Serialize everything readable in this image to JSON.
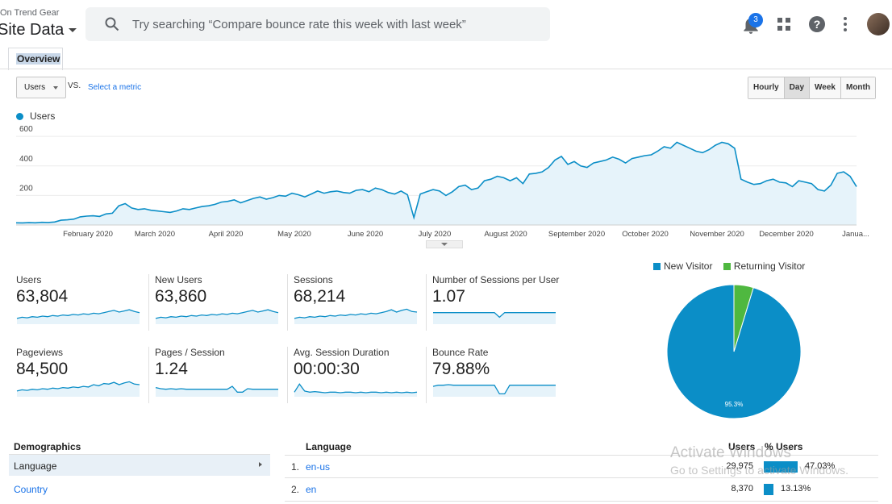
{
  "header": {
    "account": "On Trend Gear",
    "property": "Site Data",
    "search_placeholder": "Try searching “Compare bounce rate this week with last week”",
    "notification_count": "3",
    "icons": [
      "search-icon",
      "bell-icon",
      "apps-icon",
      "help-icon",
      "more-vert-icon",
      "avatar"
    ]
  },
  "tabs": {
    "overview": "Overview"
  },
  "controls": {
    "metric": "Users",
    "vs": "VS.",
    "select_metric": "Select a metric",
    "granularity": [
      "Hourly",
      "Day",
      "Week",
      "Month"
    ],
    "active_granularity": "Day"
  },
  "chart_data": [
    {
      "type": "area",
      "series": [
        {
          "name": "Users",
          "color": "#0b8ec7",
          "values": [
            15,
            14,
            16,
            15,
            18,
            17,
            20,
            32,
            35,
            40,
            55,
            60,
            62,
            58,
            75,
            80,
            130,
            145,
            115,
            105,
            110,
            100,
            95,
            90,
            85,
            95,
            110,
            105,
            115,
            125,
            130,
            140,
            155,
            160,
            170,
            150,
            165,
            180,
            190,
            175,
            185,
            200,
            195,
            215,
            205,
            190,
            210,
            230,
            215,
            225,
            230,
            220,
            215,
            235,
            240,
            225,
            250,
            240,
            220,
            210,
            230,
            205,
            50,
            210,
            225,
            240,
            230,
            200,
            225,
            260,
            270,
            240,
            250,
            300,
            310,
            330,
            320,
            300,
            320,
            280,
            345,
            350,
            360,
            390,
            440,
            465,
            410,
            430,
            400,
            390,
            420,
            430,
            440,
            460,
            445,
            420,
            450,
            460,
            470,
            475,
            500,
            530,
            520,
            560,
            540,
            520,
            500,
            490,
            510,
            540,
            560,
            550,
            520,
            310,
            290,
            275,
            280,
            300,
            310,
            290,
            285,
            260,
            300,
            290,
            280,
            240,
            230,
            270,
            350,
            360,
            330,
            260
          ]
        }
      ],
      "x_ticks": [
        "February 2020",
        "March 2020",
        "April 2020",
        "May 2020",
        "June 2020",
        "July 2020",
        "August 2020",
        "September 2020",
        "October 2020",
        "November 2020",
        "December 2020",
        "Janua..."
      ],
      "y_ticks": [
        "600",
        "400",
        "200"
      ],
      "ylim": [
        0,
        650
      ],
      "grid": true
    },
    {
      "type": "pie",
      "labels": [
        "New Visitor",
        "Returning Visitor"
      ],
      "values": [
        95.3,
        4.7
      ],
      "colors": [
        "#0b8ec7",
        "#4fb840"
      ],
      "data_labels": [
        "95.3%"
      ],
      "legend_position": "top"
    }
  ],
  "kpis": [
    {
      "label": "Users",
      "value": "63,804",
      "spark": [
        10,
        12,
        11,
        13,
        12,
        14,
        13,
        15,
        14,
        16,
        15,
        17,
        16,
        18,
        17,
        19,
        18,
        20,
        22,
        24,
        21,
        23,
        25,
        22,
        20
      ]
    },
    {
      "label": "New Users",
      "value": "63,860",
      "spark": [
        10,
        12,
        11,
        13,
        12,
        14,
        13,
        15,
        14,
        16,
        15,
        17,
        16,
        18,
        17,
        19,
        18,
        20,
        22,
        24,
        21,
        23,
        25,
        22,
        20
      ]
    },
    {
      "label": "Sessions",
      "value": "68,214",
      "spark": [
        10,
        12,
        11,
        13,
        12,
        14,
        13,
        15,
        14,
        16,
        15,
        17,
        16,
        18,
        17,
        19,
        18,
        20,
        22,
        25,
        21,
        24,
        26,
        22,
        21
      ]
    },
    {
      "label": "Number of Sessions per User",
      "value": "1.07",
      "spark": [
        20,
        20,
        20,
        20,
        20,
        20,
        20,
        20,
        20,
        20,
        20,
        20,
        20,
        12,
        20,
        20,
        20,
        20,
        20,
        20,
        20,
        20,
        20,
        20,
        20
      ]
    },
    {
      "label": "Pageviews",
      "value": "84,500",
      "spark": [
        10,
        12,
        11,
        13,
        12,
        14,
        13,
        15,
        14,
        16,
        15,
        17,
        16,
        18,
        17,
        21,
        19,
        23,
        22,
        25,
        21,
        24,
        26,
        22,
        21
      ]
    },
    {
      "label": "Pages / Session",
      "value": "1.24",
      "spark": [
        16,
        14,
        13,
        14,
        13,
        14,
        13,
        13,
        13,
        13,
        13,
        13,
        13,
        13,
        13,
        18,
        8,
        8,
        14,
        13,
        13,
        13,
        13,
        13,
        13
      ]
    },
    {
      "label": "Avg. Session Duration",
      "value": "00:00:30",
      "spark": [
        8,
        22,
        10,
        8,
        9,
        8,
        7,
        8,
        8,
        7,
        8,
        8,
        7,
        8,
        7,
        8,
        8,
        7,
        8,
        7,
        8,
        7,
        8,
        7,
        8
      ]
    },
    {
      "label": "Bounce Rate",
      "value": "79.88%",
      "spark": [
        18,
        20,
        20,
        21,
        20,
        20,
        20,
        20,
        20,
        20,
        20,
        20,
        20,
        5,
        5,
        20,
        20,
        20,
        20,
        20,
        20,
        20,
        20,
        20,
        20
      ]
    }
  ],
  "pie_legend": [
    "New Visitor",
    "Returning Visitor"
  ],
  "demographics": {
    "title": "Demographics",
    "items": [
      "Language",
      "Country"
    ]
  },
  "language_table": {
    "title": "Language",
    "col_users": "Users",
    "col_pct": "% Users",
    "rows": [
      {
        "rank": "1.",
        "lang": "en-us",
        "users": "29,975",
        "pct": "47.03%",
        "pct_value": 47.03
      },
      {
        "rank": "2.",
        "lang": "en",
        "users": "8,370",
        "pct": "13.13%",
        "pct_value": 13.13
      }
    ]
  },
  "watermark": {
    "line1": "Activate Windows",
    "line2": "Go to Settings to activate Windows."
  }
}
